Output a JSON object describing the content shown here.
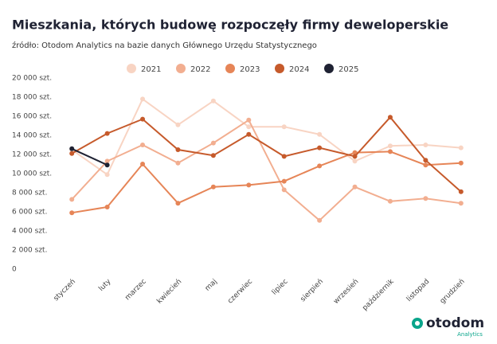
{
  "chart_data": {
    "type": "line",
    "title": "Mieszkania, których budowę rozpoczęły firmy deweloperskie",
    "subtitle": "źródło: Otodom Analytics na bazie danych Głównego Urzędu Statystycznego",
    "categories": [
      "styczeń",
      "luty",
      "marzec",
      "kwiecień",
      "maj",
      "czerwiec",
      "lipiec",
      "sierpień",
      "wrzesień",
      "październik",
      "listopad",
      "grudzień"
    ],
    "series": [
      {
        "name": "2021",
        "color": "#f8d4c3",
        "values": [
          12500,
          9900,
          17800,
          15100,
          17600,
          14900,
          14900,
          14100,
          11300,
          12900,
          13000,
          12700
        ]
      },
      {
        "name": "2022",
        "color": "#f2ae90",
        "values": [
          7300,
          11300,
          13000,
          11100,
          13200,
          15600,
          8300,
          5100,
          8600,
          7100,
          7400,
          6900
        ]
      },
      {
        "name": "2023",
        "color": "#e68557",
        "values": [
          5900,
          6500,
          11000,
          6900,
          8600,
          8800,
          9200,
          10800,
          12200,
          12300,
          10900,
          11100
        ]
      },
      {
        "name": "2024",
        "color": "#c65a2b",
        "values": [
          12100,
          14200,
          15700,
          12500,
          11900,
          14100,
          11800,
          12700,
          11800,
          15900,
          11400,
          8100
        ]
      },
      {
        "name": "2025",
        "color": "#1f2233",
        "values": [
          12600,
          10900,
          null,
          null,
          null,
          null,
          null,
          null,
          null,
          null,
          null,
          null
        ]
      }
    ],
    "ylim": [
      0,
      20000
    ],
    "yticks": [
      0,
      {
        "value": 2000,
        "label": "2 000 szt."
      },
      {
        "value": 4000,
        "label": "4 000 szt."
      },
      {
        "value": 6000,
        "label": "6 000 szt."
      },
      {
        "value": 8000,
        "label": "8 000 szt."
      },
      {
        "value": 10000,
        "label": "10 000 szt."
      },
      {
        "value": 12000,
        "label": "12 000 szt."
      },
      {
        "value": 14000,
        "label": "14 000 szt."
      },
      {
        "value": 16000,
        "label": "16 000 szt."
      },
      {
        "value": 18000,
        "label": "18 000 szt."
      },
      {
        "value": 20000,
        "label": "20 000 szt."
      }
    ],
    "grid": false
  },
  "logo": {
    "name": "otodom",
    "sub": "Analytics"
  }
}
